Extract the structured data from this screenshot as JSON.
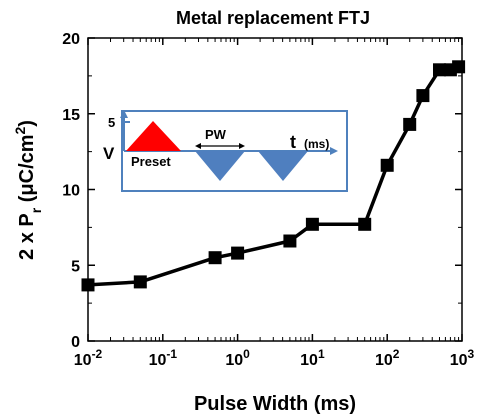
{
  "chart_data": {
    "type": "line",
    "title": "Metal replacement FTJ",
    "xlabel": "Pulse Width (ms)",
    "ylabel_parts": {
      "main": "2 x P",
      "sub": "r",
      "units_open": " (μC/cm",
      "units_sup": "2",
      "units_close": ")"
    },
    "xscale": "log",
    "xlim": [
      0.01,
      1000
    ],
    "ylim": [
      0,
      20
    ],
    "x_ticks": [
      {
        "value": 0.01,
        "base": "10",
        "exp": "-2"
      },
      {
        "value": 0.1,
        "base": "10",
        "exp": "-1"
      },
      {
        "value": 1,
        "base": "10",
        "exp": "0"
      },
      {
        "value": 10,
        "base": "10",
        "exp": "1"
      },
      {
        "value": 100,
        "base": "10",
        "exp": "2"
      },
      {
        "value": 1000,
        "base": "10",
        "exp": "3"
      }
    ],
    "y_ticks": [
      0,
      5,
      10,
      15,
      20
    ],
    "y_tick_labels": [
      "0",
      "5",
      "10",
      "15",
      "20"
    ],
    "series": [
      {
        "x": [
          0.01,
          0.05,
          0.5,
          1,
          5,
          10,
          50,
          100,
          200,
          300,
          500,
          700,
          900
        ],
        "y": [
          3.7,
          3.9,
          5.5,
          5.8,
          6.6,
          7.7,
          7.7,
          11.6,
          14.3,
          16.2,
          17.9,
          17.9,
          18.1
        ],
        "color": "#000000",
        "marker": "square"
      }
    ],
    "grid": false,
    "legend": "none",
    "inset": {
      "v_label": "V",
      "five_label": "5",
      "preset_label": "Preset",
      "pw_label": "PW",
      "t_label": "t",
      "ms_label": "(ms)",
      "preset_color": "#ff0000",
      "pulse_color": "#4f7fbf",
      "axis_color": "#4f81bd"
    }
  }
}
